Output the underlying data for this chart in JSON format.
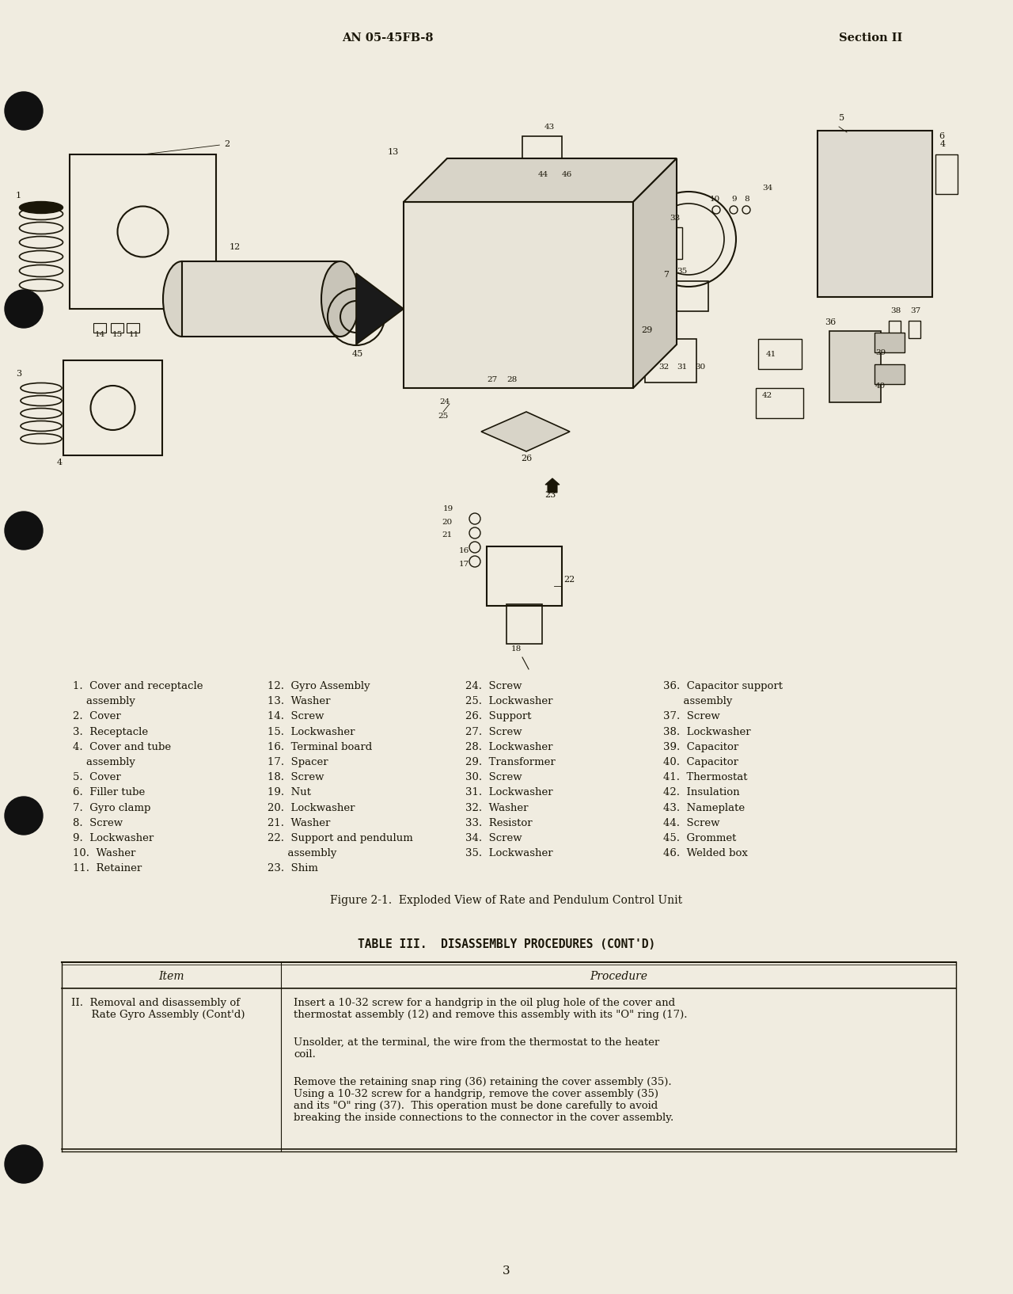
{
  "bg_color": "#f0ece0",
  "header_left": "AN 05-45FB-8",
  "header_right": "Section II",
  "page_number": "3",
  "figure_caption": "Figure 2-1.  Exploded View of Rate and Pendulum Control Unit",
  "table_title": "TABLE III.  DISASSEMBLY PROCEDURES (CONT'D)",
  "table_col1_header": "Item",
  "table_col2_header": "Procedure",
  "parts_col1": [
    "1.  Cover and receptacle",
    "    assembly",
    "2.  Cover",
    "3.  Receptacle",
    "4.  Cover and tube",
    "    assembly",
    "5.  Cover",
    "6.  Filler tube",
    "7.  Gyro clamp",
    "8.  Screw",
    "9.  Lockwasher",
    "10.  Washer",
    "11.  Retainer"
  ],
  "parts_col2": [
    "12.  Gyro Assembly",
    "13.  Washer",
    "14.  Screw",
    "15.  Lockwasher",
    "16.  Terminal board",
    "17.  Spacer",
    "18.  Screw",
    "19.  Nut",
    "20.  Lockwasher",
    "21.  Washer",
    "22.  Support and pendulum",
    "      assembly",
    "23.  Shim"
  ],
  "parts_col3": [
    "24.  Screw",
    "25.  Lockwasher",
    "26.  Support",
    "27.  Screw",
    "28.  Lockwasher",
    "29.  Transformer",
    "30.  Screw",
    "31.  Lockwasher",
    "32.  Washer",
    "33.  Resistor",
    "34.  Screw",
    "35.  Lockwasher",
    ""
  ],
  "parts_col4": [
    "36.  Capacitor support",
    "      assembly",
    "37.  Screw",
    "38.  Lockwasher",
    "39.  Capacitor",
    "40.  Capacitor",
    "41.  Thermostat",
    "42.  Insulation",
    "43.  Nameplate",
    "44.  Screw",
    "45.  Grommet",
    "46.  Welded box",
    ""
  ],
  "proc1": "Insert a 10-32 screw for a handgrip in the oil plug hole of the cover and\nthermostat assembly (12) and remove this assembly with its \"O\" ring (17).",
  "proc2": "Unsolder, at the terminal, the wire from the thermostat to the heater\ncoil.",
  "proc3": "Remove the retaining snap ring (36) retaining the cover assembly (35).\nUsing a 10-32 screw for a handgrip, remove the cover assembly (35)\nand its \"O\" ring (37).  This operation must be done carefully to avoid\nbreaking the inside connections to the connector in the cover assembly."
}
